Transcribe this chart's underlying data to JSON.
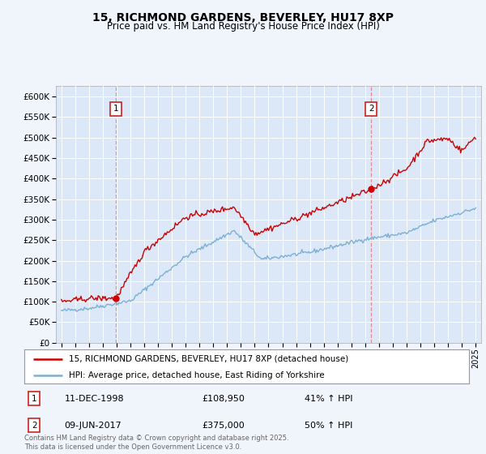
{
  "title": "15, RICHMOND GARDENS, BEVERLEY, HU17 8XP",
  "subtitle": "Price paid vs. HM Land Registry's House Price Index (HPI)",
  "background_color": "#f0f4fb",
  "plot_bg_color": "#dce8f8",
  "legend_line1": "15, RICHMOND GARDENS, BEVERLEY, HU17 8XP (detached house)",
  "legend_line2": "HPI: Average price, detached house, East Riding of Yorkshire",
  "annotation1_date": "11-DEC-1998",
  "annotation1_price": "£108,950",
  "annotation1_hpi": "41% ↑ HPI",
  "annotation2_date": "09-JUN-2017",
  "annotation2_price": "£375,000",
  "annotation2_hpi": "50% ↑ HPI",
  "footnote": "Contains HM Land Registry data © Crown copyright and database right 2025.\nThis data is licensed under the Open Government Licence v3.0.",
  "red_color": "#cc0000",
  "blue_color": "#7ab0d4",
  "ylim": [
    0,
    625000
  ],
  "yticks": [
    0,
    50000,
    100000,
    150000,
    200000,
    250000,
    300000,
    350000,
    400000,
    450000,
    500000,
    550000,
    600000
  ],
  "sale1_year": 1998.95,
  "sale1_value": 108950,
  "sale2_year": 2017.44,
  "sale2_value": 375000
}
